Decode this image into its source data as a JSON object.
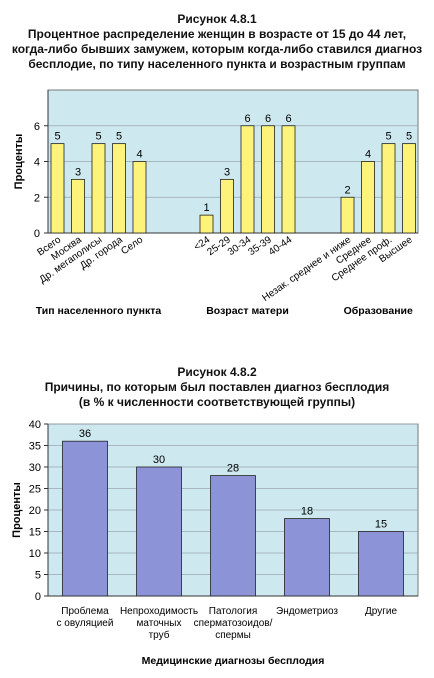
{
  "figure1": {
    "heading": "Рисунок 4.8.1",
    "title_lines": [
      "Процентное распределение женщин в возрасте от 15 до 44 лет,",
      "когда-либо бывших замужем, которым когда-либо ставился диагноз",
      "бесплодие, по типу населенного пункта и возрастным группам"
    ]
  },
  "figure2": {
    "heading": "Рисунок 4.8.2",
    "title_lines": [
      "Причины, по которым был поставлен диагноз бесплодия",
      "(в % к численности соответствующей группы)"
    ]
  },
  "chart_data": [
    {
      "type": "bar",
      "ylabel": "Проценты",
      "ylim": [
        0,
        8
      ],
      "yticks": [
        0,
        2,
        4,
        6
      ],
      "grid": true,
      "colors": {
        "plot_bg": "#cde9ef",
        "bar": "#fdf27a",
        "bar_stroke": "#222222"
      },
      "groups": [
        {
          "name": "Тип населенного пункта",
          "categories": [
            "Всего",
            "Москва",
            "Др. мегаполисы",
            "Др. города",
            "Село"
          ],
          "values": [
            5,
            3,
            5,
            5,
            4
          ]
        },
        {
          "name": "Возраст матери",
          "categories": [
            "<24",
            "25-29",
            "30-34",
            "35-39",
            "40-44"
          ],
          "values": [
            1,
            3,
            6,
            6,
            6
          ]
        },
        {
          "name": "Образование",
          "categories": [
            "Незак. среднее и ниже",
            "Среднее",
            "Среднее проф.",
            "Высшее"
          ],
          "values": [
            2,
            4,
            5,
            5
          ]
        }
      ]
    },
    {
      "type": "bar",
      "xlabel": "Медицинские диагнозы бесплодия",
      "ylabel": "Проценты",
      "ylim": [
        0,
        40
      ],
      "yticks": [
        0,
        5,
        10,
        15,
        20,
        25,
        30,
        35,
        40
      ],
      "grid": true,
      "colors": {
        "plot_bg": "#cde9ef",
        "bar": "#8c93d6",
        "bar_stroke": "#222222"
      },
      "categories": [
        [
          "Проблема",
          "с овуляцией"
        ],
        [
          "Непроходимость",
          "маточных",
          "труб"
        ],
        [
          "Патология",
          "сперматозоидов/",
          "спермы"
        ],
        [
          "Эндометриоз"
        ],
        [
          "Другие"
        ]
      ],
      "values": [
        36,
        30,
        28,
        18,
        15
      ]
    }
  ]
}
